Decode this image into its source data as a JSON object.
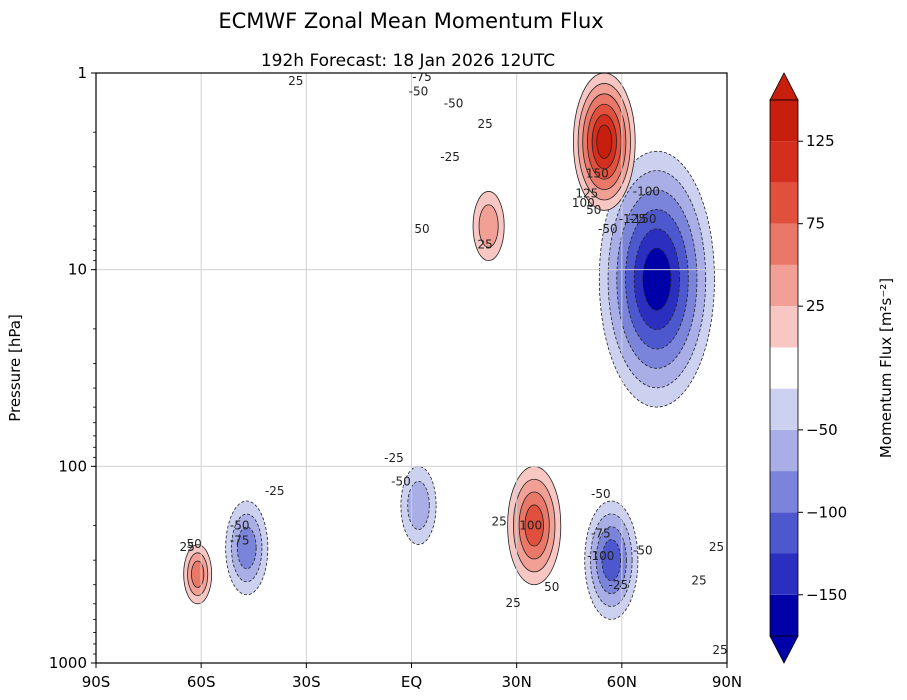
{
  "chart_data": {
    "type": "heatmap",
    "title": "ECMWF Zonal Mean Momentum Flux",
    "subtitle": "192h  Forecast:  18 Jan 2026  12UTC",
    "ylabel": "Pressure [hPa]",
    "y_scale": "log",
    "y_inverted": true,
    "ylim": [
      1000,
      1
    ],
    "xlim": [
      -90,
      90
    ],
    "x_ticks": [
      {
        "value": -90,
        "label": "90S"
      },
      {
        "value": -60,
        "label": "60S"
      },
      {
        "value": -30,
        "label": "30S"
      },
      {
        "value": 0,
        "label": "EQ"
      },
      {
        "value": 30,
        "label": "30N"
      },
      {
        "value": 60,
        "label": "60N"
      },
      {
        "value": 90,
        "label": "90N"
      }
    ],
    "y_ticks": [
      {
        "value": 1,
        "label": "1"
      },
      {
        "value": 10,
        "label": "10"
      },
      {
        "value": 100,
        "label": "100"
      },
      {
        "value": 1000,
        "label": "1000"
      }
    ],
    "grid": true,
    "colorbar": {
      "label": "Momentum Flux [m²s⁻²]",
      "levels": [
        -150,
        -125,
        -100,
        -75,
        -50,
        -25,
        25,
        50,
        75,
        100,
        125,
        150
      ],
      "tick_labels": [
        {
          "value": 125,
          "label": "125"
        },
        {
          "value": 75,
          "label": "75"
        },
        {
          "value": 25,
          "label": "25"
        },
        {
          "value": -50,
          "label": "−50"
        },
        {
          "value": -100,
          "label": "−100"
        },
        {
          "value": -150,
          "label": "−150"
        }
      ],
      "colors": [
        "#0000a8",
        "#2a2fc0",
        "#4d58cf",
        "#7a84da",
        "#a9afe6",
        "#cdd1f0",
        "#ffffff",
        "#f8c7c3",
        "#f2a096",
        "#ea7869",
        "#e0503c",
        "#d42e1e",
        "#c81e0e"
      ],
      "extend": "both"
    },
    "features": [
      {
        "name": "nh-polar-negative-core",
        "lat": 70,
        "p_top": 2.5,
        "p_bottom": 50,
        "sign": "negative",
        "peak": -150
      },
      {
        "name": "nh-upper-positive-jet",
        "lat": 55,
        "p_top": 1,
        "p_bottom": 5,
        "sign": "positive",
        "peak": 150
      },
      {
        "name": "subtropical-positive-30n",
        "lat": 35,
        "p_top": 100,
        "p_bottom": 400,
        "sign": "positive",
        "peak": 100
      },
      {
        "name": "midlat-negative-60n",
        "lat": 57,
        "p_top": 150,
        "p_bottom": 600,
        "sign": "negative",
        "peak": -100
      },
      {
        "name": "tropical-negative-eq",
        "lat": 2,
        "p_top": 100,
        "p_bottom": 250,
        "sign": "negative",
        "peak": -50
      },
      {
        "name": "sh-negative-45s",
        "lat": -47,
        "p_top": 150,
        "p_bottom": 450,
        "sign": "negative",
        "peak": -75
      },
      {
        "name": "sh-positive-60s",
        "lat": -61,
        "p_top": 250,
        "p_bottom": 500,
        "sign": "positive",
        "peak": 75
      },
      {
        "name": "upper-positive-25n",
        "lat": 22,
        "p_top": 4,
        "p_bottom": 9,
        "sign": "positive",
        "peak": 50
      }
    ],
    "contour_labels": [
      {
        "text": "25",
        "lat": -33,
        "p": 1.15
      },
      {
        "text": "-75",
        "lat": 3,
        "p": 1.1
      },
      {
        "text": "-50",
        "lat": 2,
        "p": 1.3
      },
      {
        "text": "-50",
        "lat": 12,
        "p": 1.5
      },
      {
        "text": "-25",
        "lat": 11,
        "p": 2.8
      },
      {
        "text": "25",
        "lat": 21,
        "p": 1.9
      },
      {
        "text": "150",
        "lat": 53,
        "p": 3.4
      },
      {
        "text": "125",
        "lat": 50,
        "p": 4.3
      },
      {
        "text": "100",
        "lat": 49,
        "p": 4.8
      },
      {
        "text": "50",
        "lat": 52,
        "p": 5.2
      },
      {
        "text": "-100",
        "lat": 67,
        "p": 4.2
      },
      {
        "text": "-125",
        "lat": 63,
        "p": 5.8
      },
      {
        "text": "-150",
        "lat": 66,
        "p": 5.8
      },
      {
        "text": "-50",
        "lat": 56,
        "p": 6.5
      },
      {
        "text": "50",
        "lat": 3,
        "p": 6.5
      },
      {
        "text": "25",
        "lat": 21,
        "p": 7.8
      },
      {
        "text": "-25",
        "lat": -5,
        "p": 95
      },
      {
        "text": "-50",
        "lat": -3,
        "p": 125
      },
      {
        "text": "-25",
        "lat": -39,
        "p": 140
      },
      {
        "text": "-50",
        "lat": -49,
        "p": 210
      },
      {
        "text": "-75",
        "lat": -49,
        "p": 250
      },
      {
        "text": "25",
        "lat": -64,
        "p": 270
      },
      {
        "text": "50",
        "lat": -62,
        "p": 260
      },
      {
        "text": "25",
        "lat": 25,
        "p": 200
      },
      {
        "text": "100",
        "lat": 34,
        "p": 210
      },
      {
        "text": "50",
        "lat": 40,
        "p": 430
      },
      {
        "text": "25",
        "lat": 29,
        "p": 520
      },
      {
        "text": "-50",
        "lat": 54,
        "p": 145
      },
      {
        "text": "-75",
        "lat": 54,
        "p": 230
      },
      {
        "text": "-100",
        "lat": 54,
        "p": 300
      },
      {
        "text": "-25",
        "lat": 59,
        "p": 420
      },
      {
        "text": "-50",
        "lat": 66,
        "p": 280
      },
      {
        "text": "25",
        "lat": 82,
        "p": 400
      },
      {
        "text": "25",
        "lat": 87,
        "p": 270
      },
      {
        "text": "25",
        "lat": 88,
        "p": 900
      }
    ]
  }
}
